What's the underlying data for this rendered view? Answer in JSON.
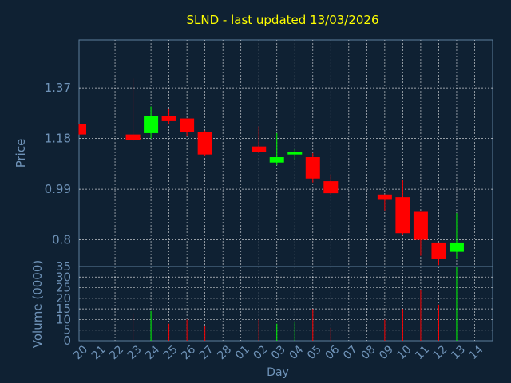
{
  "chart_data": {
    "type": "candlestick",
    "title": "SLND - last updated 13/03/2026",
    "xlabel": "Day",
    "ylabel_price": "Price",
    "ylabel_volume": "Volume (0000)",
    "days": [
      "20",
      "21",
      "22",
      "23",
      "24",
      "25",
      "26",
      "27",
      "28",
      "01",
      "02",
      "03",
      "04",
      "05",
      "06",
      "07",
      "08",
      "09",
      "10",
      "11",
      "12",
      "13",
      "14"
    ],
    "price_ticks": [
      "1.37",
      "1.18",
      "0.99",
      "0.8"
    ],
    "price_tick_values": [
      1.37,
      1.18,
      0.99,
      0.8
    ],
    "price_range": [
      0.7,
      1.55
    ],
    "volume_ticks": [
      "35",
      "30",
      "25",
      "20",
      "15",
      "10",
      "5",
      "0"
    ],
    "volume_tick_values": [
      35,
      30,
      25,
      20,
      15,
      10,
      5,
      0
    ],
    "volume_range": [
      0,
      35
    ],
    "grid": true,
    "candles": [
      {
        "day": "20",
        "open": 1.235,
        "high": 1.235,
        "low": 1.195,
        "close": 1.195,
        "volume": 0
      },
      {
        "day": "23",
        "open": 1.195,
        "high": 1.405,
        "low": 1.17,
        "close": 1.175,
        "volume": 13
      },
      {
        "day": "24",
        "open": 1.2,
        "high": 1.3,
        "low": 1.18,
        "close": 1.265,
        "volume": 14
      },
      {
        "day": "25",
        "open": 1.265,
        "high": 1.29,
        "low": 1.235,
        "close": 1.245,
        "volume": 8
      },
      {
        "day": "26",
        "open": 1.255,
        "high": 1.255,
        "low": 1.19,
        "close": 1.205,
        "volume": 10
      },
      {
        "day": "27",
        "open": 1.205,
        "high": 1.21,
        "low": 1.115,
        "close": 1.12,
        "volume": 7
      },
      {
        "day": "02",
        "open": 1.15,
        "high": 1.225,
        "low": 1.125,
        "close": 1.13,
        "volume": 10
      },
      {
        "day": "03",
        "open": 1.09,
        "high": 1.2,
        "low": 1.08,
        "close": 1.11,
        "volume": 8
      },
      {
        "day": "04",
        "open": 1.12,
        "high": 1.14,
        "low": 1.1,
        "close": 1.13,
        "volume": 9
      },
      {
        "day": "05",
        "open": 1.11,
        "high": 1.125,
        "low": 1.015,
        "close": 1.03,
        "volume": 15
      },
      {
        "day": "06",
        "open": 1.02,
        "high": 1.045,
        "low": 0.97,
        "close": 0.975,
        "volume": 6
      },
      {
        "day": "09",
        "open": 0.97,
        "high": 0.97,
        "low": 0.91,
        "close": 0.95,
        "volume": 10
      },
      {
        "day": "10",
        "open": 0.96,
        "high": 1.025,
        "low": 0.82,
        "close": 0.825,
        "volume": 15
      },
      {
        "day": "11",
        "open": 0.905,
        "high": 0.905,
        "low": 0.74,
        "close": 0.8,
        "volume": 24
      },
      {
        "day": "12",
        "open": 0.79,
        "high": 0.79,
        "low": 0.705,
        "close": 0.73,
        "volume": 17
      },
      {
        "day": "13",
        "open": 0.755,
        "high": 0.9,
        "low": 0.73,
        "close": 0.79,
        "volume": 35
      }
    ]
  },
  "colors": {
    "background": "#0f2133",
    "title": "#ffff00",
    "axis_text": "#6f93b8",
    "grid": "#ffffff",
    "up": "#00ff00",
    "down": "#ff0000"
  }
}
